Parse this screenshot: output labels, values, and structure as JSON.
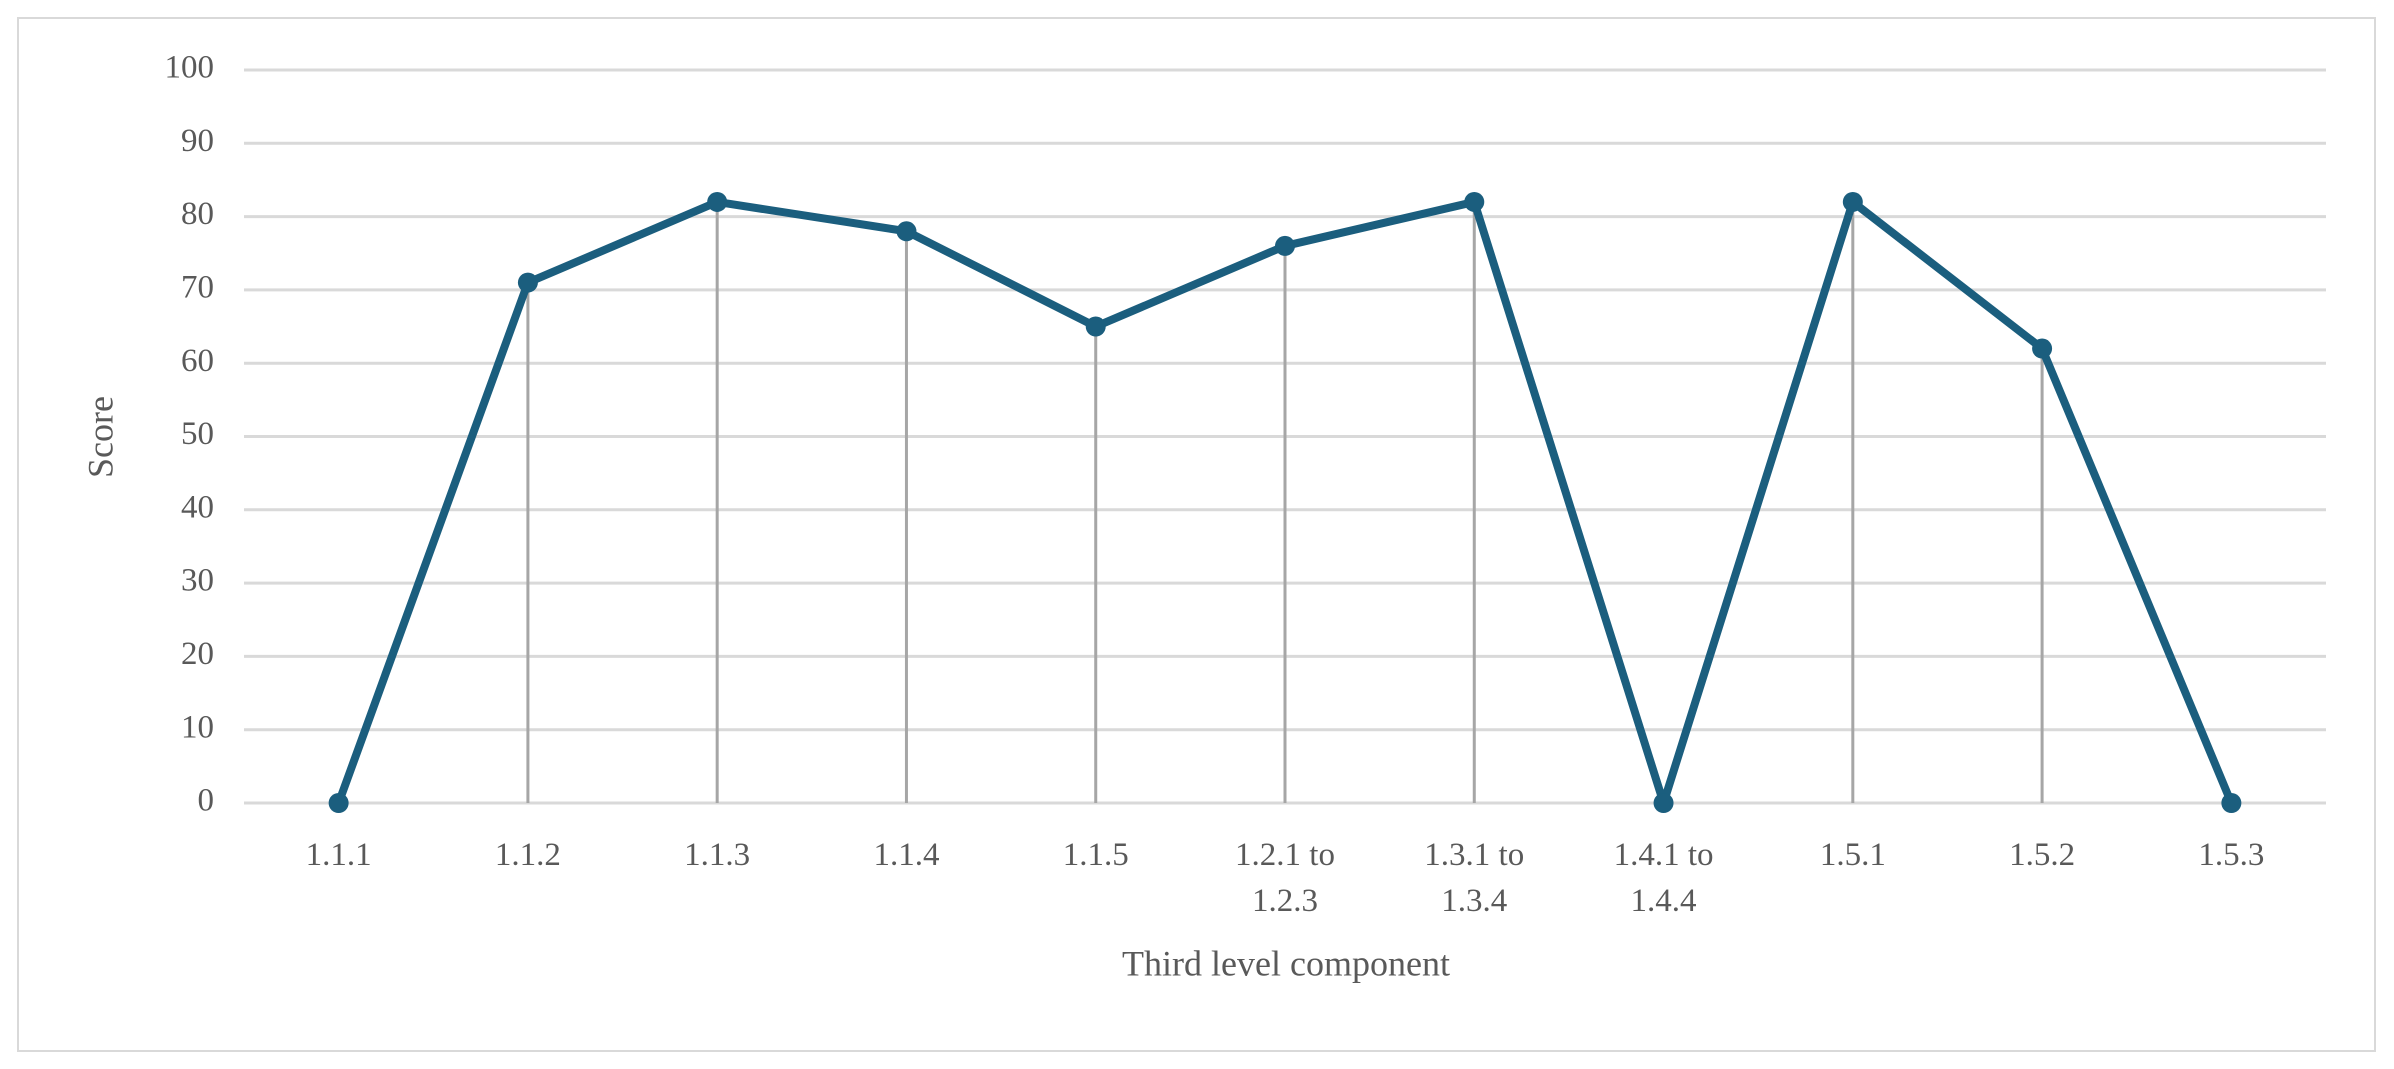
{
  "chart_data": {
    "type": "line",
    "x_label": "Third level component",
    "y_label": "Score",
    "categories": [
      "1.1.1",
      "1.1.2",
      "1.1.3",
      "1.1.4",
      "1.1.5",
      "1.2.1 to 1.2.3",
      "1.3.1 to 1.3.4",
      "1.4.1 to 1.4.4",
      "1.5.1",
      "1.5.2",
      "1.5.3"
    ],
    "series": [
      {
        "name": "Score",
        "color": "#1b5e7e",
        "values": [
          0,
          71,
          82,
          78,
          65,
          76,
          82,
          0,
          82,
          62,
          0
        ]
      }
    ],
    "ylim": [
      0,
      100
    ],
    "yticks": [
      0,
      10,
      20,
      30,
      40,
      50,
      60,
      70,
      80,
      90,
      100
    ],
    "grid": true,
    "drop_lines": true,
    "markers": true
  }
}
